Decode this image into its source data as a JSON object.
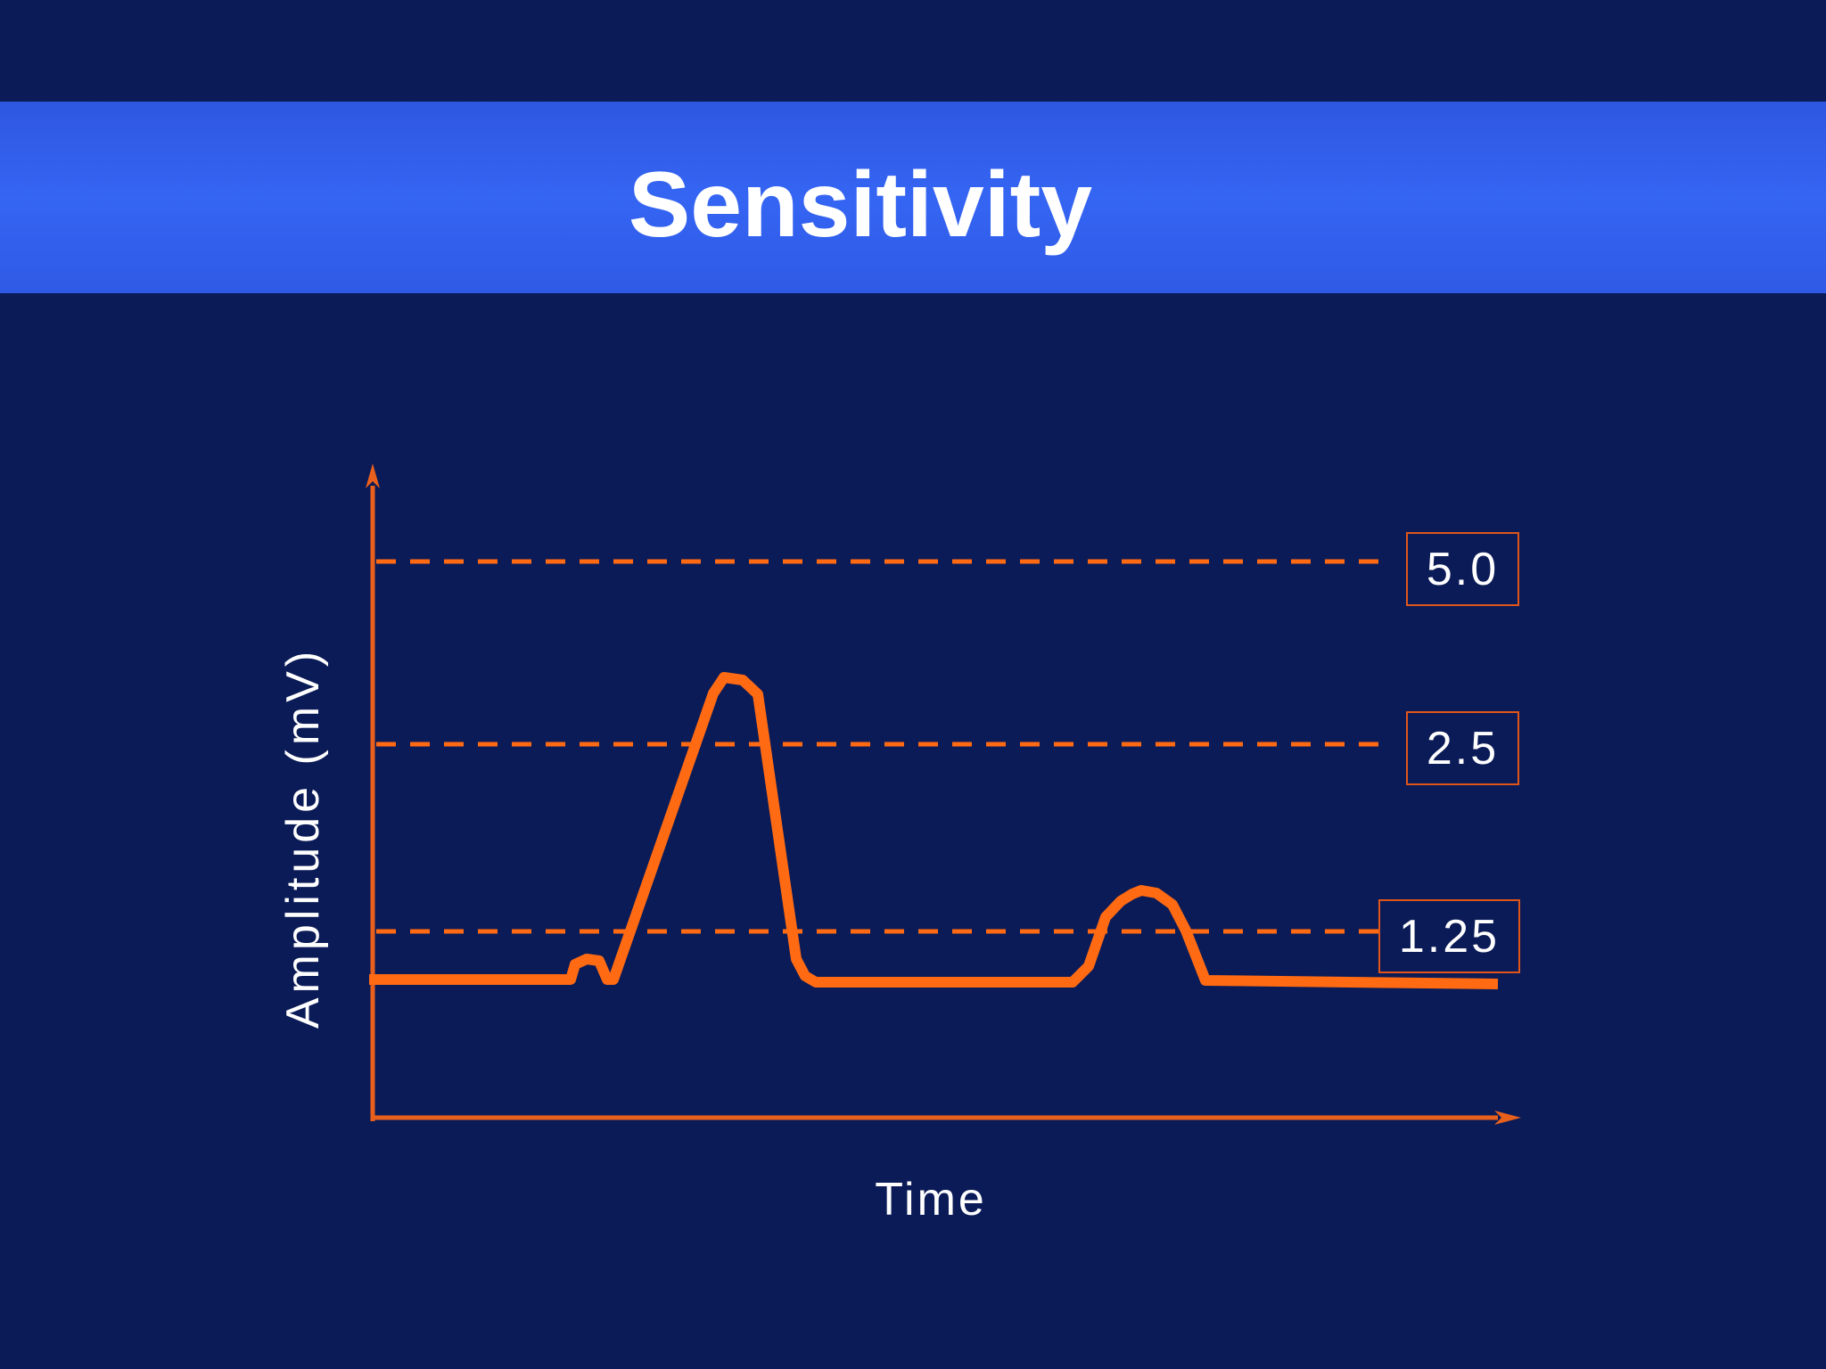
{
  "slide": {
    "title": "Sensitivity"
  },
  "diagram": {
    "ylabel": "Amplitude (mV)",
    "xlabel": "Time",
    "levels": [
      "5.0",
      "2.5",
      "1.25"
    ],
    "colors": {
      "background": "#0b1b57",
      "title_band": "#3565f3",
      "signal": "#ff6a13",
      "axis": "#e8601c",
      "text": "#ffffff"
    }
  }
}
